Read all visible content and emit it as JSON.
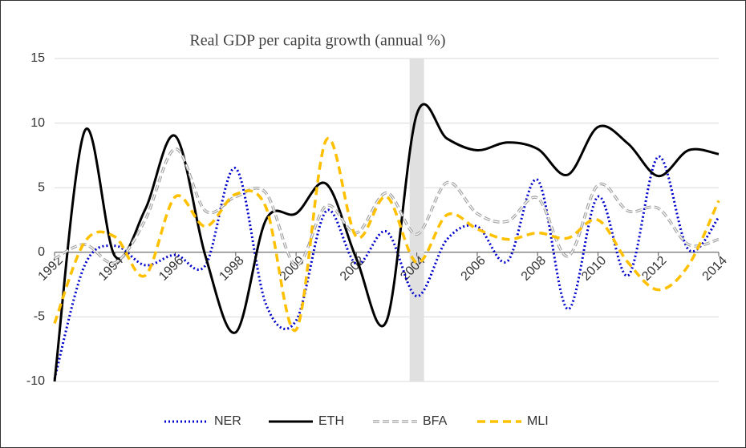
{
  "chart_data": {
    "type": "line",
    "title": "Real GDP  per capita growth (annual %)",
    "x": [
      1992,
      1993,
      1994,
      1995,
      1996,
      1997,
      1998,
      1999,
      2000,
      2001,
      2002,
      2003,
      2004,
      2005,
      2006,
      2007,
      2008,
      2009,
      2010,
      2011,
      2012,
      2013,
      2014
    ],
    "xlim": [
      1992,
      2014
    ],
    "xticks": [
      1992,
      1994,
      1996,
      1998,
      2000,
      2002,
      2004,
      2006,
      2008,
      2010,
      2012,
      2014
    ],
    "ylim": [
      -10,
      15
    ],
    "yticks": [
      -10,
      -5,
      0,
      5,
      10,
      15
    ],
    "grid": true,
    "highlight_x": 2004,
    "legend": "bottom",
    "series": [
      {
        "name": "NER",
        "color": "#0000cc",
        "dash": "dotted",
        "values": [
          -9.8,
          -1.0,
          0.5,
          -1.0,
          -0.2,
          -1.0,
          6.5,
          -4.0,
          -5.3,
          3.2,
          -0.9,
          1.6,
          -3.4,
          1.0,
          2.0,
          -0.7,
          5.6,
          -4.4,
          4.3,
          -1.8,
          7.4,
          0.2,
          2.7
        ]
      },
      {
        "name": "ETH",
        "color": "#000000",
        "dash": "solid",
        "values": [
          -10,
          9.4,
          -0.3,
          3.3,
          9.0,
          -0.3,
          -6.2,
          2.5,
          3.0,
          5.3,
          -0.5,
          -5.3,
          10.7,
          8.8,
          7.9,
          8.5,
          8.0,
          6.0,
          9.7,
          8.4,
          5.9,
          7.9,
          7.6
        ]
      },
      {
        "name": "BFA",
        "color": "#a0a0a0",
        "dash": "double-dashed",
        "values": [
          -0.5,
          0.6,
          -0.8,
          2.5,
          8.0,
          3.2,
          4.3,
          4.6,
          -1.0,
          3.6,
          1.5,
          4.6,
          1.4,
          5.4,
          3.0,
          2.4,
          4.2,
          -0.3,
          5.2,
          3.2,
          3.4,
          0.6,
          1.0
        ]
      },
      {
        "name": "MLI",
        "color": "#ffc000",
        "dash": "dashed",
        "values": [
          -5.5,
          0.8,
          1.2,
          -1.8,
          4.3,
          2.0,
          4.5,
          3.5,
          -6.0,
          8.7,
          1.2,
          4.3,
          -0.8,
          2.9,
          1.8,
          1.0,
          1.5,
          1.1,
          2.5,
          -0.8,
          -2.9,
          -1.0,
          4.0
        ]
      }
    ]
  }
}
